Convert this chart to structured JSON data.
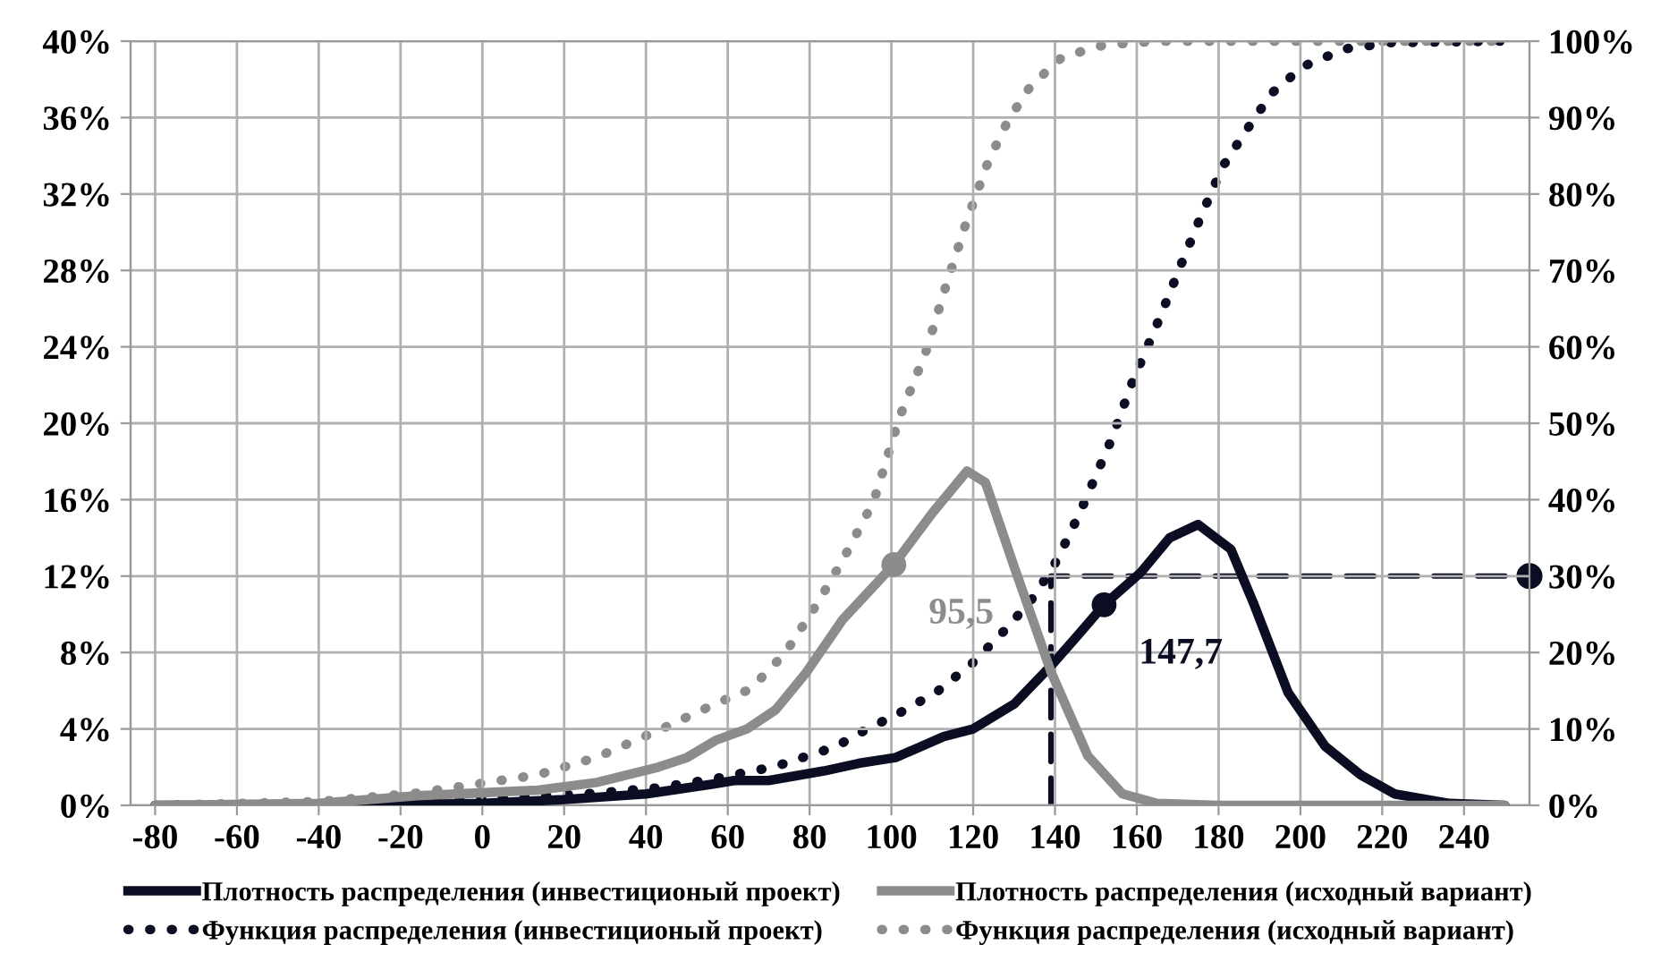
{
  "chart_data": {
    "type": "line",
    "xlim": [
      -86,
      256
    ],
    "xticks": [
      -80,
      -60,
      -40,
      -20,
      0,
      20,
      40,
      60,
      80,
      100,
      120,
      140,
      160,
      180,
      200,
      220,
      240
    ],
    "ylim": [
      0,
      40
    ],
    "yticks": [
      {
        "value": 0,
        "label": "0%"
      },
      {
        "value": 4,
        "label": "4%"
      },
      {
        "value": 8,
        "label": "8%"
      },
      {
        "value": 12,
        "label": "12%"
      },
      {
        "value": 16,
        "label": "16%"
      },
      {
        "value": 20,
        "label": "20%"
      },
      {
        "value": 24,
        "label": "24%"
      },
      {
        "value": 28,
        "label": "28%"
      },
      {
        "value": 32,
        "label": "32%"
      },
      {
        "value": 36,
        "label": "36%"
      },
      {
        "value": 40,
        "label": "40%"
      }
    ],
    "y2lim": [
      0,
      100
    ],
    "y2ticks": [
      {
        "value": 0,
        "label": "0%"
      },
      {
        "value": 10,
        "label": "10%"
      },
      {
        "value": 20,
        "label": "20%"
      },
      {
        "value": 30,
        "label": "30%"
      },
      {
        "value": 40,
        "label": "40%"
      },
      {
        "value": 50,
        "label": "50%"
      },
      {
        "value": 60,
        "label": "60%"
      },
      {
        "value": 70,
        "label": "70%"
      },
      {
        "value": 80,
        "label": "80%"
      },
      {
        "value": 90,
        "label": "90%"
      },
      {
        "value": 100,
        "label": "100%"
      }
    ],
    "grid": true,
    "legend": "bottom",
    "series": [
      {
        "name": "Плотность распределения (инвестиционый проект)",
        "color": "#0b0e22",
        "line_style": "solid",
        "x": [
          -80,
          -40,
          0,
          20,
          40,
          56,
          61.6,
          70,
          83.5,
          92,
          101,
          112.8,
          120,
          130,
          139,
          146,
          152,
          161,
          168,
          175,
          183,
          188.5,
          197,
          206,
          214.7,
          223,
          236.5,
          250
        ],
        "values": [
          0,
          0,
          0.1,
          0.3,
          0.6,
          1.1,
          1.3,
          1.3,
          1.8,
          2.2,
          2.5,
          3.6,
          4.0,
          5.3,
          7.3,
          9.0,
          10.5,
          12.2,
          14.0,
          14.7,
          13.4,
          10.6,
          5.9,
          3.1,
          1.6,
          0.6,
          0.1,
          0
        ]
      },
      {
        "name": "Плотность распределения (исходный вариант)",
        "color": "#8c8c8c",
        "line_style": "solid",
        "x": [
          -80,
          -40,
          -16,
          13.6,
          28,
          43,
          50,
          57,
          64.7,
          71.7,
          79,
          88,
          100.6,
          110,
          118.5,
          123,
          130,
          139,
          148,
          156.5,
          165,
          180,
          250
        ],
        "values": [
          0,
          0.1,
          0.5,
          0.8,
          1.2,
          2.0,
          2.5,
          3.4,
          4.0,
          5.0,
          6.9,
          9.7,
          12.6,
          15.3,
          17.5,
          16.9,
          12.5,
          7.0,
          2.6,
          0.6,
          0.1,
          0,
          0
        ]
      },
      {
        "name": "Функция распределения (инвестиционый проект)",
        "color": "#0b0e22",
        "line_style": "dotted",
        "axis": "y2",
        "x": [
          -80,
          -20,
          13.6,
          28,
          43,
          57,
          71.7,
          86.5,
          92,
          102,
          111,
          120,
          128.6,
          135,
          140.5,
          146,
          153.5,
          159,
          165.7,
          171,
          175.3,
          181,
          187,
          193,
          200.7,
          211,
          222,
          250
        ],
        "values": [
          0,
          0.3,
          1.2,
          1.6,
          2.3,
          3.5,
          5.1,
          7.7,
          9.4,
          12.1,
          14.8,
          18.7,
          23.4,
          27.4,
          32.1,
          38.2,
          47.5,
          55.5,
          63.9,
          71,
          76.6,
          83.6,
          88.5,
          93.2,
          96.7,
          99,
          99.8,
          100
        ]
      },
      {
        "name": "Функция распределения (исходный вариант)",
        "color": "#8c8c8c",
        "line_style": "dotted",
        "axis": "y2",
        "x": [
          -80,
          -40,
          -16,
          13.6,
          28,
          43,
          57,
          65.5,
          74,
          82,
          88,
          95.7,
          102,
          108.4,
          113.3,
          118.5,
          123.7,
          128.6,
          134,
          141.7,
          152,
          165,
          250
        ],
        "values": [
          0,
          0.5,
          1.6,
          4.0,
          6.3,
          9.8,
          13.3,
          15.2,
          19.9,
          26.5,
          32,
          39.8,
          50.8,
          59.3,
          67.9,
          76.6,
          84.3,
          89.7,
          94.1,
          97.9,
          99.5,
          100,
          100
        ]
      },
      {
        "color": "#0b0e22",
        "line_style": "dashed",
        "axis": "y2",
        "x": [
          139,
          139,
          256
        ],
        "values": [
          0,
          30,
          30
        ]
      },
      {
        "type": "scatter",
        "marker": "circle",
        "color": "#0b0e22",
        "axis": "y2",
        "x": [
          256
        ],
        "values": [
          30
        ]
      }
    ],
    "annotations": [
      {
        "text": "147,7",
        "x": 152,
        "y": 10.5
      },
      {
        "text": "95,5",
        "x": 100.6,
        "y": 12.6
      }
    ]
  }
}
